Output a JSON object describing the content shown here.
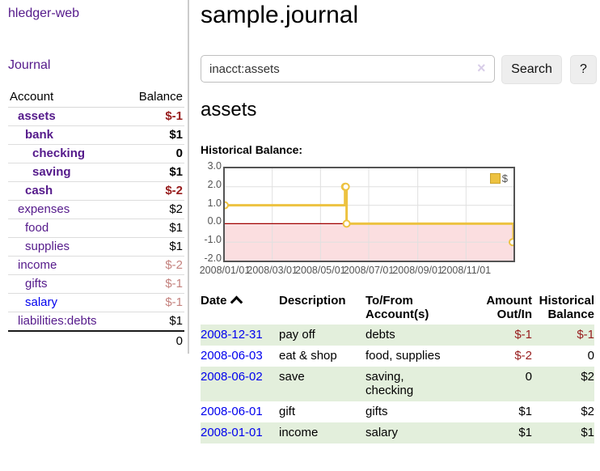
{
  "app": {
    "title": "hledger-web",
    "nav_journal": "Journal"
  },
  "sidebar": {
    "accounts_table": {
      "col_account": "Account",
      "col_balance": "Balance",
      "rows": [
        {
          "name": "assets",
          "balance": "$-1",
          "depth": 1,
          "bold": true,
          "neg": "strong",
          "link_color": "purple"
        },
        {
          "name": "bank",
          "balance": "$1",
          "depth": 2,
          "bold": true,
          "neg": "none",
          "link_color": "purple"
        },
        {
          "name": "checking",
          "balance": "0",
          "depth": 3,
          "bold": true,
          "neg": "none",
          "link_color": "purple"
        },
        {
          "name": "saving",
          "balance": "$1",
          "depth": 3,
          "bold": true,
          "neg": "none",
          "link_color": "purple"
        },
        {
          "name": "cash",
          "balance": "$-2",
          "depth": 2,
          "bold": true,
          "neg": "strong",
          "link_color": "purple"
        },
        {
          "name": "expenses",
          "balance": "$2",
          "depth": 1,
          "bold": false,
          "neg": "none",
          "link_color": "purple"
        },
        {
          "name": "food",
          "balance": "$1",
          "depth": 2,
          "bold": false,
          "neg": "none",
          "link_color": "purple"
        },
        {
          "name": "supplies",
          "balance": "$1",
          "depth": 2,
          "bold": false,
          "neg": "none",
          "link_color": "purple"
        },
        {
          "name": "income",
          "balance": "$-2",
          "depth": 1,
          "bold": false,
          "neg": "soft",
          "link_color": "purple"
        },
        {
          "name": "gifts",
          "balance": "$-1",
          "depth": 2,
          "bold": false,
          "neg": "soft",
          "link_color": "purple"
        },
        {
          "name": "salary",
          "balance": "$-1",
          "depth": 2,
          "bold": false,
          "neg": "soft",
          "link_color": "blue"
        },
        {
          "name": "liabilities:debts",
          "balance": "$1",
          "depth": 1,
          "bold": false,
          "neg": "none",
          "link_color": "purple"
        }
      ],
      "total": "0"
    }
  },
  "header": {
    "title": "sample.journal"
  },
  "search": {
    "value": "inacct:assets",
    "clear_icon": "×",
    "search_label": "Search",
    "help_label": "?"
  },
  "account_page": {
    "title": "assets",
    "chart_label": "Historical Balance:"
  },
  "chart_data": {
    "type": "line",
    "title": "Historical Balance",
    "step": true,
    "series": [
      {
        "name": "$",
        "color": "#edc240",
        "points": [
          [
            "2008-01-01",
            1
          ],
          [
            "2008-06-01",
            2
          ],
          [
            "2008-06-02",
            2
          ],
          [
            "2008-06-03",
            0
          ],
          [
            "2008-12-31",
            -1
          ]
        ]
      }
    ],
    "ylim": [
      -2.0,
      3.0
    ],
    "yticks": [
      3.0,
      2.0,
      1.0,
      0.0,
      -1.0,
      -2.0
    ],
    "ytick_labels": [
      "3.0",
      "2.0",
      "1.0",
      "0.0",
      "-1.0",
      "-2.0"
    ],
    "xticks": [
      "2008/01/01",
      "2008/03/01",
      "2008/05/01",
      "2008/07/01",
      "2008/09/01",
      "2008/11/01"
    ],
    "xrange_days": [
      0,
      365
    ],
    "legend_label": "$",
    "legend_position": "top-right",
    "grid": true,
    "grid_color": "#e0e0e0",
    "negative_region_fill": "#fbdee0",
    "zero_line_color": "#a00000",
    "border_color": "#545454"
  },
  "transactions": {
    "headers": {
      "date": "Date",
      "sort_icon": "chevron-up",
      "description": "Description",
      "tofrom_lines": [
        "To/From",
        "Account(s)"
      ],
      "amount_lines": [
        "Amount",
        "Out/In"
      ],
      "balance_lines": [
        "Historical",
        "Balance"
      ]
    },
    "rows": [
      {
        "date": "2008-12-31",
        "description": "pay off",
        "accounts_lines": [
          "debts"
        ],
        "amount": "$-1",
        "amount_neg": true,
        "balance": "$-1",
        "balance_neg": true
      },
      {
        "date": "2008-06-03",
        "description": "eat & shop",
        "accounts_lines": [
          "food, supplies"
        ],
        "amount": "$-2",
        "amount_neg": true,
        "balance": "0",
        "balance_neg": false
      },
      {
        "date": "2008-06-02",
        "description": "save",
        "accounts_lines": [
          "saving,",
          "checking"
        ],
        "amount": "0",
        "amount_neg": false,
        "balance": "$2",
        "balance_neg": false
      },
      {
        "date": "2008-06-01",
        "description": "gift",
        "accounts_lines": [
          "gifts"
        ],
        "amount": "$1",
        "amount_neg": false,
        "balance": "$2",
        "balance_neg": false
      },
      {
        "date": "2008-01-01",
        "description": "income",
        "accounts_lines": [
          "salary"
        ],
        "amount": "$1",
        "amount_neg": false,
        "balance": "$1",
        "balance_neg": false
      }
    ]
  }
}
